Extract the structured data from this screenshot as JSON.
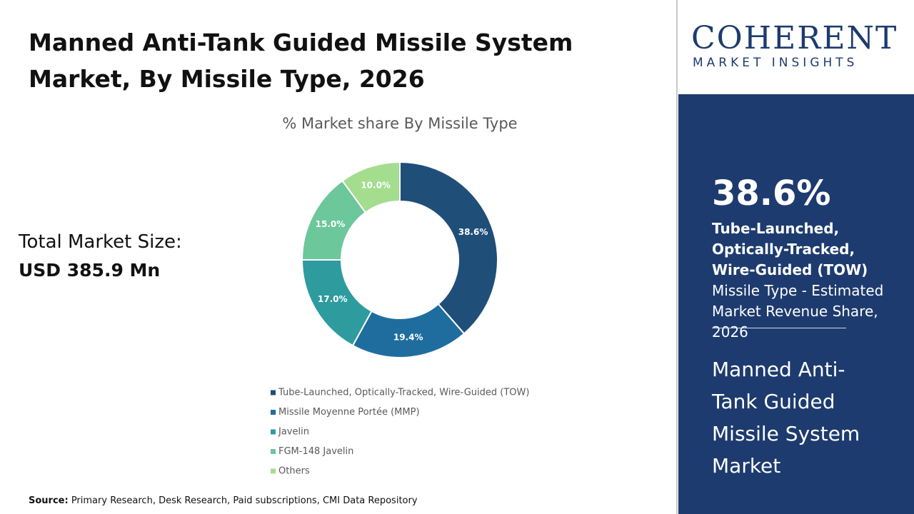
{
  "header": {
    "title": "Manned Anti-Tank Guided Missile System Market, By Missile Type, 2026"
  },
  "summary": {
    "label": "Total Market Size:",
    "value": "USD 385.9 Mn"
  },
  "chart_data": {
    "type": "pie",
    "title": "% Market share By Missile Type",
    "categories": [
      "Tube-Launched, Optically-Tracked, Wire-Guided (TOW)",
      "Missile Moyenne Portée (MMP)",
      "Javelin",
      "FGM-148 Javelin",
      "Others"
    ],
    "values": [
      38.6,
      19.4,
      17.0,
      15.0,
      10.0
    ],
    "value_labels": [
      "38.6%",
      "19.4%",
      "17.0%",
      "15.0%",
      "10.0%"
    ],
    "colors": [
      "#1f4e79",
      "#1f6d9e",
      "#2e9b9f",
      "#6cc79a",
      "#a5dd8f"
    ]
  },
  "sidebar": {
    "logo": {
      "name": "COHERENT",
      "tagline": "MARKET INSIGHTS"
    },
    "highlight": {
      "value": "38.6%",
      "bold": "Tube-Launched, Optically-Tracked, Wire-Guided (TOW)",
      "text": " Missile Type - Estimated Market Revenue Share, 2026"
    },
    "market": "Manned Anti-Tank Guided Missile System Market"
  },
  "source": {
    "label": "Source:",
    "text": " Primary Research, Desk Research, Paid subscriptions, CMI Data Repository"
  }
}
